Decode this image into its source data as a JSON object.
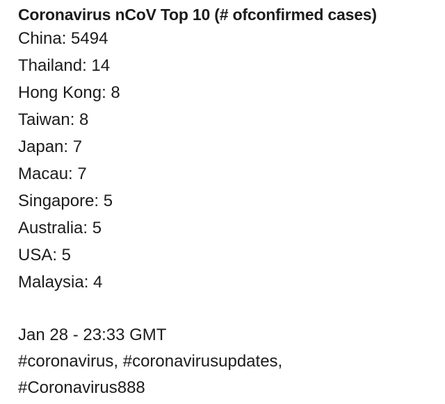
{
  "document": {
    "title": "Coronavirus nCoV Top 10 (# ofconfirmed cases)",
    "entries": [
      {
        "text": "China: 5494"
      },
      {
        "text": "Thailand: 14"
      },
      {
        "text": "Hong Kong: 8"
      },
      {
        "text": "Taiwan: 8"
      },
      {
        "text": "Japan: 7"
      },
      {
        "text": "Macau: 7"
      },
      {
        "text": "Singapore: 5"
      },
      {
        "text": "Australia: 5"
      },
      {
        "text": "USA: 5"
      },
      {
        "text": "Malaysia: 4"
      }
    ],
    "timestamp": "Jan 28 - 23:33 GMT",
    "hashtags_line1": "#coronavirus, #coronavirusupdates,",
    "hashtags_line2": "#Coronavirus888"
  }
}
